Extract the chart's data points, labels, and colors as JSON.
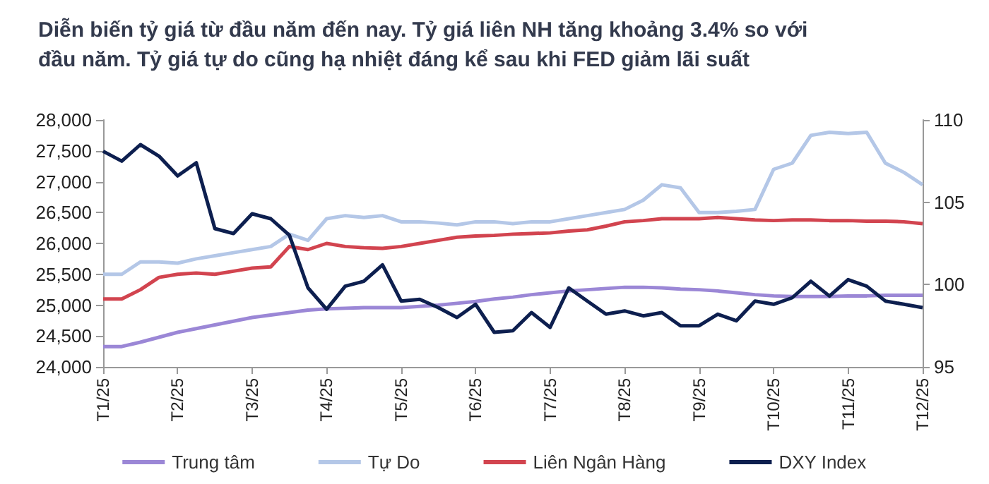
{
  "chart_data": {
    "type": "line",
    "title": "Diễn biến tỷ giá từ đầu năm đến nay. Tỷ giá liên NH tăng khoảng 3.4% so với đầu năm. Tỷ giá tự do cũng hạ nhiệt đáng kể sau khi FED giảm lãi suất",
    "categories": [
      "T1/25",
      null,
      null,
      null,
      "T2/25",
      null,
      null,
      null,
      "T3/25",
      null,
      null,
      null,
      "T4/25",
      null,
      null,
      null,
      "T5/25",
      null,
      null,
      null,
      "T6/25",
      null,
      null,
      null,
      "T7/25",
      null,
      null,
      null,
      "T8/25",
      null,
      null,
      null,
      "T9/25",
      null,
      null,
      null,
      "T10/25",
      null,
      null,
      null,
      "T11/25",
      null,
      null,
      null,
      "T12/25"
    ],
    "series": [
      {
        "name": "Trung tâm",
        "color": "#9b87d6",
        "values": [
          24330,
          24330,
          24400,
          24480,
          24560,
          24620,
          24680,
          24740,
          24800,
          24840,
          24880,
          24920,
          24940,
          24950,
          24960,
          24960,
          24960,
          24980,
          25000,
          25030,
          25060,
          25100,
          25130,
          25170,
          25200,
          25230,
          25250,
          25270,
          25290,
          25290,
          25280,
          25260,
          25250,
          25230,
          25200,
          25170,
          25150,
          25140,
          25140,
          25140,
          25150,
          25150,
          25160,
          25160,
          25160
        ]
      },
      {
        "name": "Tự Do",
        "color": "#b4c7e7",
        "values": [
          25500,
          25500,
          25700,
          25700,
          25680,
          25750,
          25800,
          25850,
          25900,
          25950,
          26150,
          26050,
          26400,
          26450,
          26420,
          26450,
          26350,
          26350,
          26330,
          26300,
          26350,
          26350,
          26320,
          26350,
          26350,
          26400,
          26450,
          26500,
          26550,
          26700,
          26950,
          26900,
          26500,
          26500,
          26520,
          26550,
          27200,
          27300,
          27750,
          27800,
          27780,
          27800,
          27300,
          27150,
          26950
        ]
      },
      {
        "name": "Liên Ngân Hàng",
        "color": "#d2444f",
        "values": [
          25100,
          25100,
          25250,
          25450,
          25500,
          25520,
          25500,
          25550,
          25600,
          25620,
          25950,
          25900,
          26000,
          25950,
          25930,
          25920,
          25950,
          26000,
          26050,
          26100,
          26120,
          26130,
          26150,
          26160,
          26170,
          26200,
          26220,
          26280,
          26350,
          26370,
          26400,
          26400,
          26400,
          26420,
          26400,
          26380,
          26370,
          26380,
          26380,
          26370,
          26370,
          26360,
          26360,
          26350,
          26320
        ]
      },
      {
        "name": "DXY Index",
        "color": "#0d1f4f",
        "axis": "y2",
        "values": [
          108.1,
          107.5,
          108.5,
          107.8,
          106.6,
          107.4,
          103.4,
          103.1,
          104.3,
          104.0,
          103.0,
          99.8,
          98.5,
          99.9,
          100.2,
          101.2,
          99.0,
          99.1,
          98.6,
          98.0,
          98.8,
          97.1,
          97.2,
          98.3,
          97.4,
          99.8,
          99.0,
          98.2,
          98.4,
          98.1,
          98.3,
          97.5,
          97.5,
          98.2,
          97.8,
          99.0,
          98.8,
          99.2,
          100.2,
          99.3,
          100.3,
          99.9,
          99.0,
          98.8,
          98.6
        ]
      }
    ],
    "ylim": [
      24000,
      28000
    ],
    "yticks": [
      {
        "value": 24000,
        "label": "24,000"
      },
      {
        "value": 24500,
        "label": "24,500"
      },
      {
        "value": 25000,
        "label": "25,000"
      },
      {
        "value": 25500,
        "label": "25,500"
      },
      {
        "value": 26000,
        "label": "26,000"
      },
      {
        "value": 26500,
        "label": "26,500"
      },
      {
        "value": 27000,
        "label": "27,000"
      },
      {
        "value": 27500,
        "label": "27,500"
      },
      {
        "value": 28000,
        "label": "28,000"
      }
    ],
    "y2lim": [
      95,
      110
    ],
    "y2ticks": [
      95,
      100,
      105,
      110
    ],
    "grid": false,
    "legend": "bottom",
    "marker": "none",
    "line_style": "solid"
  }
}
